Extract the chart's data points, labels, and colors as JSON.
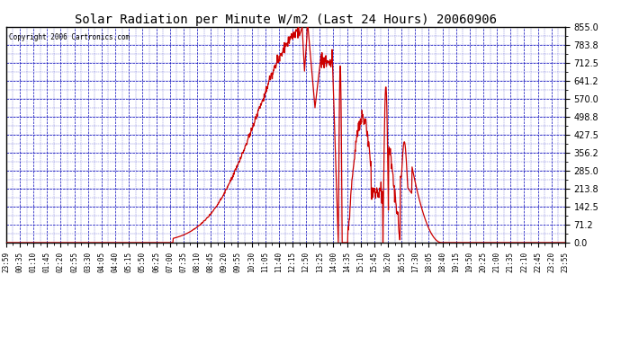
{
  "title": "Solar Radiation per Minute W/m2 (Last 24 Hours) 20060906",
  "copyright_text": "Copyright 2006 Cartronics.com",
  "line_color": "#cc0000",
  "background_color": "#ffffff",
  "grid_color": "#0000bb",
  "axis_color": "#000000",
  "text_color": "#000000",
  "title_color": "#000000",
  "ylim": [
    0.0,
    855.0
  ],
  "yticks": [
    0.0,
    71.2,
    142.5,
    213.8,
    285.0,
    356.2,
    427.5,
    498.8,
    570.0,
    641.2,
    712.5,
    783.8,
    855.0
  ],
  "xtick_labels": [
    "23:59",
    "00:35",
    "01:10",
    "01:45",
    "02:20",
    "02:55",
    "03:30",
    "04:05",
    "04:40",
    "05:15",
    "05:50",
    "06:25",
    "07:00",
    "07:35",
    "08:10",
    "08:45",
    "09:20",
    "09:55",
    "10:30",
    "11:05",
    "11:40",
    "12:15",
    "12:50",
    "13:25",
    "14:00",
    "14:35",
    "15:10",
    "15:45",
    "16:20",
    "16:55",
    "17:30",
    "18:05",
    "18:40",
    "19:15",
    "19:50",
    "20:25",
    "21:00",
    "21:35",
    "22:10",
    "22:45",
    "23:20",
    "23:55"
  ],
  "num_points": 1440,
  "figwidth": 6.9,
  "figheight": 3.75,
  "dpi": 100
}
